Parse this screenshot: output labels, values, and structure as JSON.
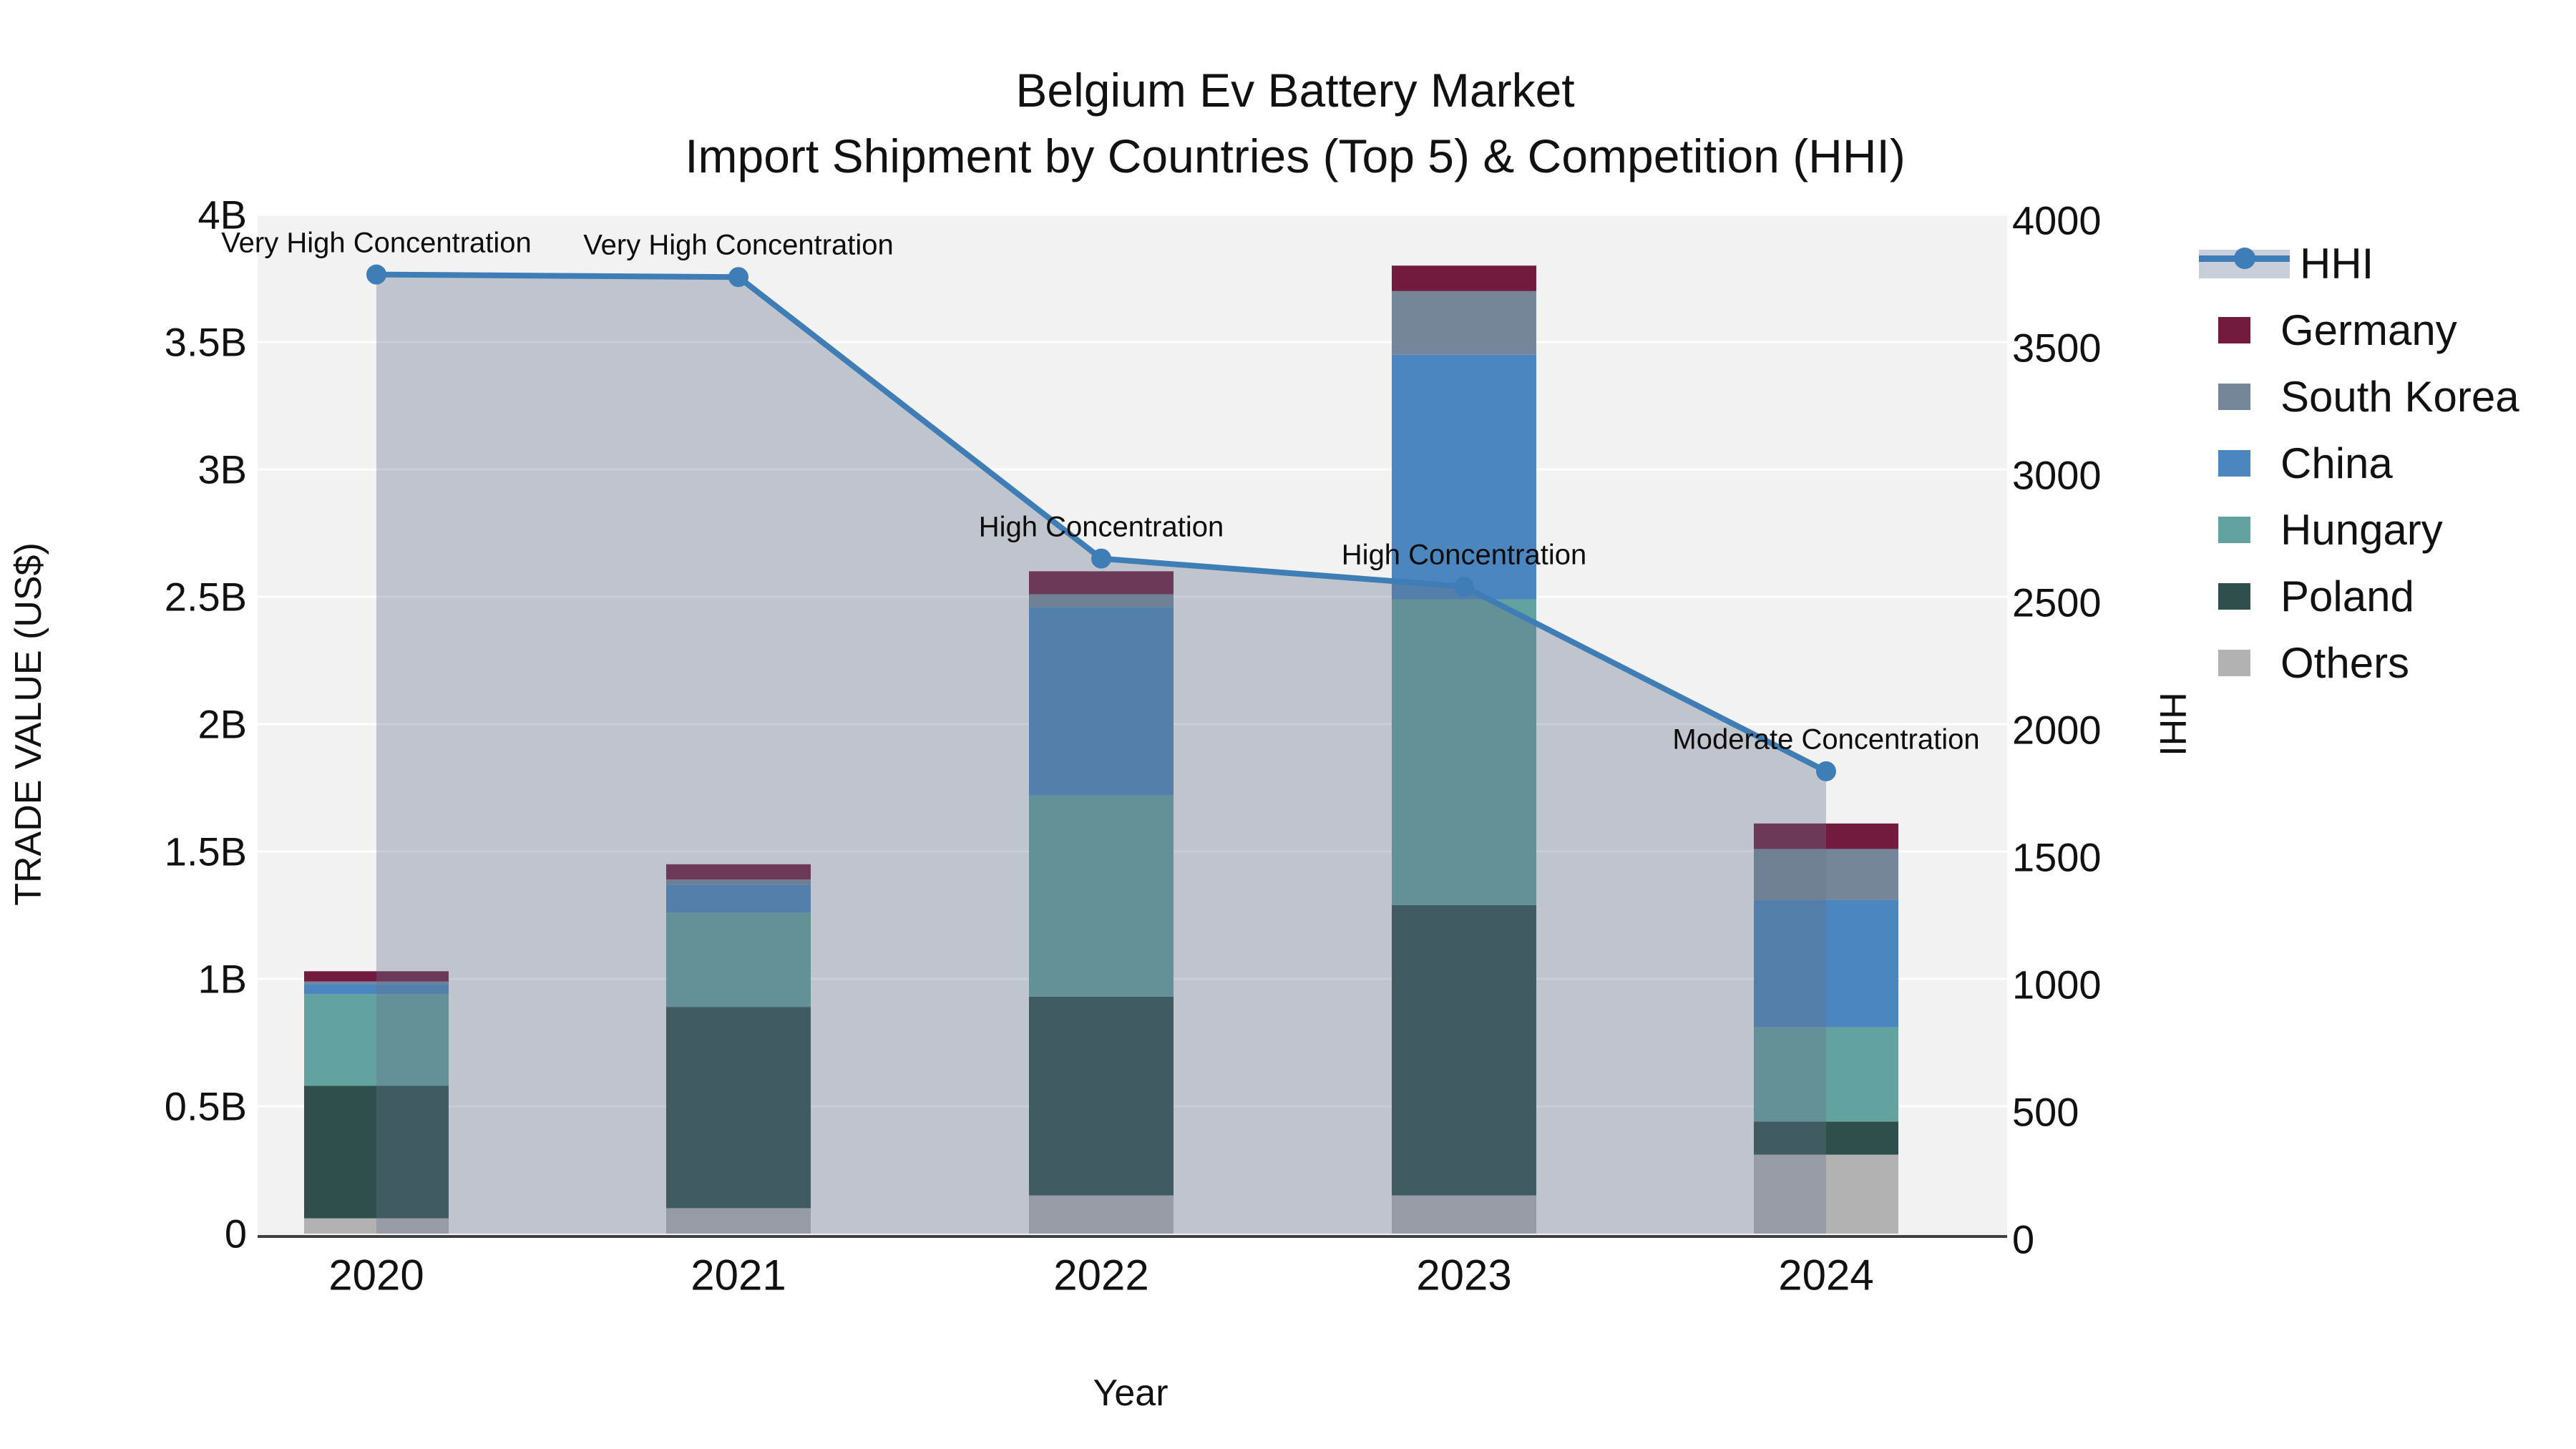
{
  "chart_data": {
    "type": "bar",
    "subtype": "stacked-bar-with-line-overlay",
    "title": "Belgium Ev Battery Market",
    "subtitle": "Import Shipment by Countries (Top 5) & Competition (HHI)",
    "xlabel": "Year",
    "ylabel_left": "TRADE VALUE (US$)",
    "ylabel_right": "HHI",
    "categories": [
      "2020",
      "2021",
      "2022",
      "2023",
      "2024"
    ],
    "bar_unit": "billion US$",
    "series": [
      {
        "name": "Others",
        "color": "#b2b2b2",
        "values_billion": [
          0.06,
          0.1,
          0.15,
          0.15,
          0.31
        ]
      },
      {
        "name": "Poland",
        "color": "#2f4f4d",
        "values_billion": [
          0.52,
          0.79,
          0.78,
          1.14,
          0.13
        ]
      },
      {
        "name": "Hungary",
        "color": "#63a29f",
        "values_billion": [
          0.36,
          0.37,
          0.79,
          1.2,
          0.37
        ]
      },
      {
        "name": "China",
        "color": "#4c86be",
        "values_billion": [
          0.04,
          0.11,
          0.74,
          0.96,
          0.5
        ]
      },
      {
        "name": "South Korea",
        "color": "#75869a",
        "values_billion": [
          0.01,
          0.02,
          0.05,
          0.25,
          0.2
        ]
      },
      {
        "name": "Germany",
        "color": "#721b3e",
        "values_billion": [
          0.04,
          0.06,
          0.09,
          0.1,
          0.1
        ]
      }
    ],
    "bar_totals_billion": [
      1.03,
      1.45,
      2.6,
      3.8,
      1.61
    ],
    "hhi": {
      "name": "HHI",
      "values": [
        3765,
        3755,
        2650,
        2540,
        1815
      ],
      "line_color": "#3f7db6",
      "area_fill_color": "rgba(100,114,138,0.35)"
    },
    "annotations": [
      "Very High Concentration",
      "Very High Concentration",
      "High Concentration",
      "High Concentration",
      "Moderate Concentration"
    ],
    "y_left": {
      "min": 0,
      "max": 4000000000,
      "tick_labels": [
        "0",
        "0.5B",
        "1B",
        "1.5B",
        "2B",
        "2.5B",
        "3B",
        "3.5B",
        "4B"
      ]
    },
    "y_right": {
      "min": 0,
      "max": 4000,
      "tick_labels": [
        "0",
        "500",
        "1000",
        "1500",
        "2000",
        "2500",
        "3000",
        "3500",
        "4000"
      ]
    },
    "legend_order": [
      "HHI",
      "Germany",
      "South Korea",
      "China",
      "Hungary",
      "Poland",
      "Others"
    ],
    "legend_position": "right",
    "grid": "horizontal-only",
    "plot_background": "#f2f2f2",
    "gridline_color": "#ffffff",
    "axisline_color": "#3f3f3f"
  }
}
